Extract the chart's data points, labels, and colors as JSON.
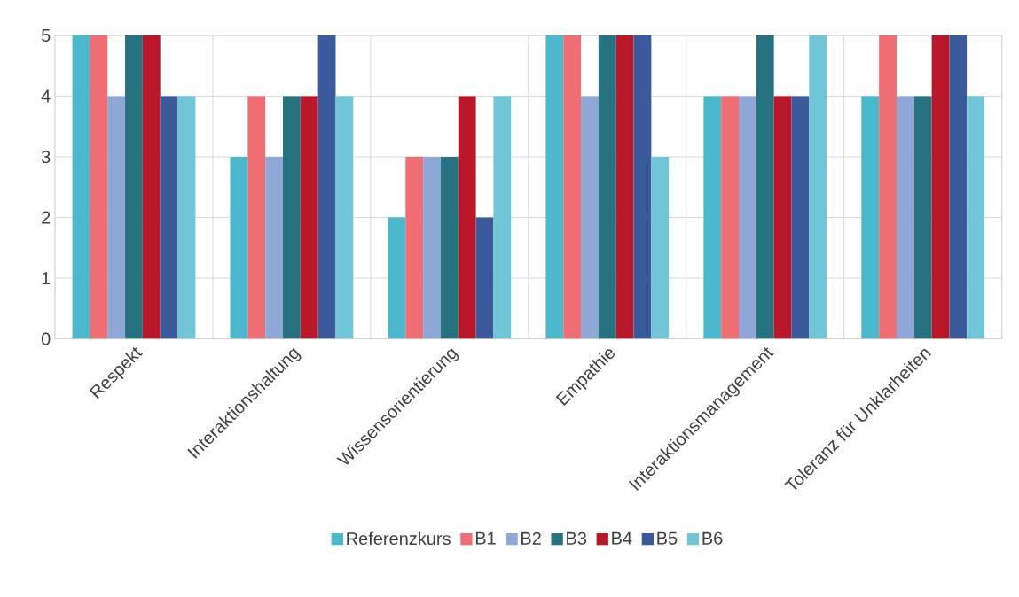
{
  "chart_data": {
    "type": "bar",
    "categories": [
      "Respekt",
      "Interaktionshaltung",
      "Wissensorientierung",
      "Empathie",
      "Interaktionsmanagement",
      "Toleranz für Unklarheiten"
    ],
    "series": [
      {
        "name": "Referenzkurs",
        "color": "#4bb8cc",
        "values": [
          5,
          3,
          2,
          5,
          4,
          4
        ]
      },
      {
        "name": "B1",
        "color": "#ee6e73",
        "values": [
          5,
          4,
          3,
          5,
          4,
          5
        ]
      },
      {
        "name": "B2",
        "color": "#8fa8d8",
        "values": [
          4,
          3,
          3,
          4,
          4,
          4
        ]
      },
      {
        "name": "B3",
        "color": "#26737f",
        "values": [
          5,
          4,
          3,
          5,
          5,
          4
        ]
      },
      {
        "name": "B4",
        "color": "#b8182a",
        "values": [
          5,
          4,
          4,
          5,
          4,
          5
        ]
      },
      {
        "name": "B5",
        "color": "#3a5a9c",
        "values": [
          4,
          5,
          2,
          5,
          4,
          5
        ]
      },
      {
        "name": "B6",
        "color": "#70c6d6",
        "values": [
          4,
          4,
          4,
          3,
          5,
          4
        ]
      }
    ],
    "ylim": [
      0,
      5
    ],
    "yticks": [
      0,
      1,
      2,
      3,
      4,
      5
    ],
    "grid": true,
    "legend": "bottom"
  }
}
